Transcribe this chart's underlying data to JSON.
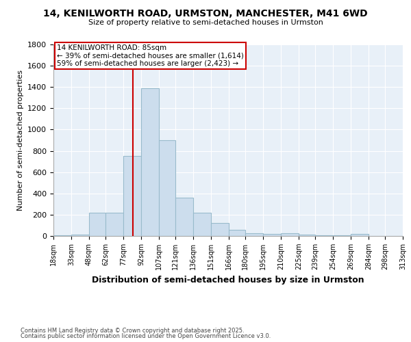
{
  "title_line1": "14, KENILWORTH ROAD, URMSTON, MANCHESTER, M41 6WD",
  "title_line2": "Size of property relative to semi-detached houses in Urmston",
  "xlabel": "Distribution of semi-detached houses by size in Urmston",
  "ylabel": "Number of semi-detached properties",
  "footer_line1": "Contains HM Land Registry data © Crown copyright and database right 2025.",
  "footer_line2": "Contains public sector information licensed under the Open Government Licence v3.0.",
  "annotation_title": "14 KENILWORTH ROAD: 85sqm",
  "annotation_line1": "← 39% of semi-detached houses are smaller (1,614)",
  "annotation_line2": "59% of semi-detached houses are larger (2,423) →",
  "property_size": 85,
  "bin_edges": [
    18,
    33,
    48,
    62,
    77,
    92,
    107,
    121,
    136,
    151,
    166,
    180,
    195,
    210,
    225,
    239,
    254,
    269,
    284,
    298,
    313
  ],
  "bin_labels": [
    "18sqm",
    "33sqm",
    "48sqm",
    "62sqm",
    "77sqm",
    "92sqm",
    "107sqm",
    "121sqm",
    "136sqm",
    "151sqm",
    "166sqm",
    "180sqm",
    "195sqm",
    "210sqm",
    "225sqm",
    "239sqm",
    "254sqm",
    "269sqm",
    "284sqm",
    "298sqm",
    "313sqm"
  ],
  "bar_heights": [
    5,
    15,
    220,
    220,
    750,
    1390,
    900,
    360,
    220,
    120,
    55,
    25,
    20,
    25,
    10,
    8,
    5,
    18,
    2,
    1,
    1
  ],
  "bar_color": "#ccdded",
  "bar_edge_color": "#99bbcc",
  "property_line_color": "#cc0000",
  "annotation_box_color": "#ffffff",
  "annotation_box_edge": "#cc0000",
  "background_color": "#e8f0f8",
  "ylim": [
    0,
    1800
  ],
  "yticks": [
    0,
    200,
    400,
    600,
    800,
    1000,
    1200,
    1400,
    1600,
    1800
  ]
}
